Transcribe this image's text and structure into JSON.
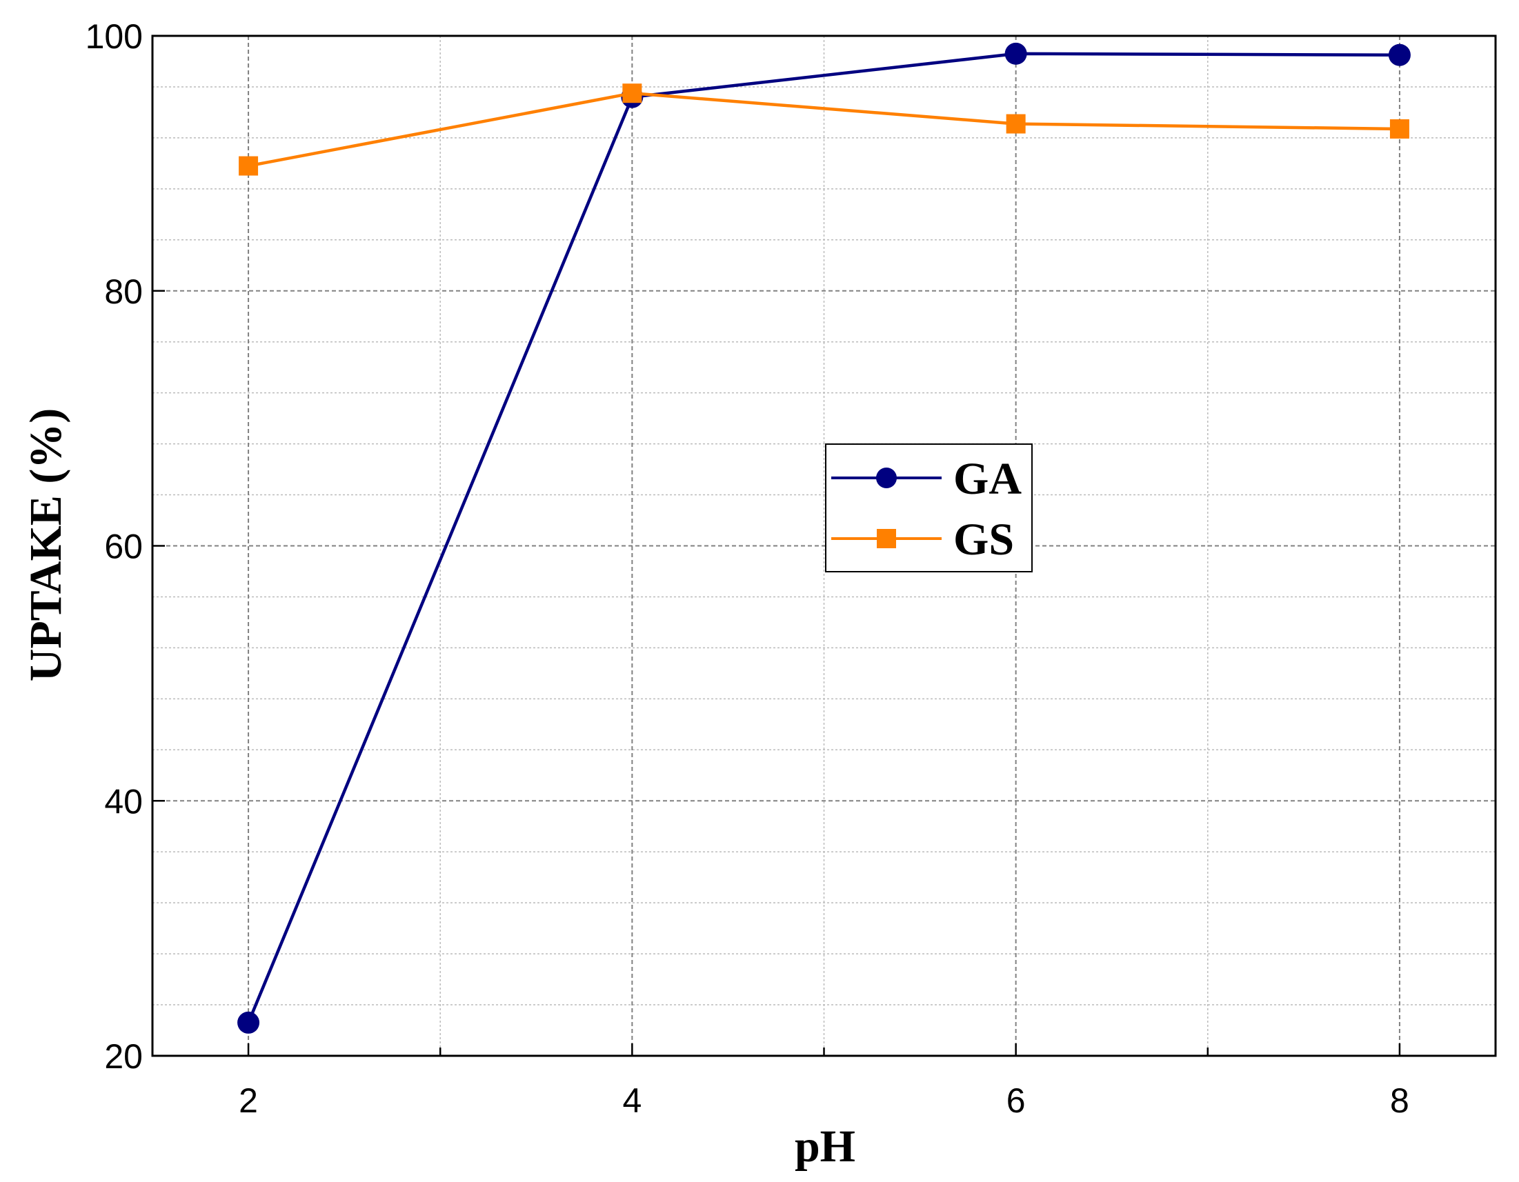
{
  "chart_data": {
    "type": "line",
    "title": "",
    "xlabel": "pH",
    "ylabel": "UPTAKE (%)",
    "xlim": [
      1.5,
      8.5
    ],
    "ylim": [
      20,
      100
    ],
    "x_ticks": [
      2,
      4,
      6,
      8
    ],
    "x_minor_ticks": [
      3,
      5,
      7
    ],
    "y_ticks": [
      20,
      40,
      60,
      80,
      100
    ],
    "y_minor_step": 4,
    "grid": true,
    "legend": {
      "placement": "center",
      "entries": [
        "GA",
        "GS"
      ]
    },
    "series": [
      {
        "name": "GA",
        "color": "#000080",
        "marker": "circle",
        "x": [
          2,
          4,
          6,
          8
        ],
        "values": [
          22.6,
          95.2,
          98.6,
          98.5
        ]
      },
      {
        "name": "GS",
        "color": "#FF8000",
        "marker": "square",
        "x": [
          2,
          4,
          6,
          8
        ],
        "values": [
          89.8,
          95.5,
          93.1,
          92.7
        ]
      }
    ]
  }
}
